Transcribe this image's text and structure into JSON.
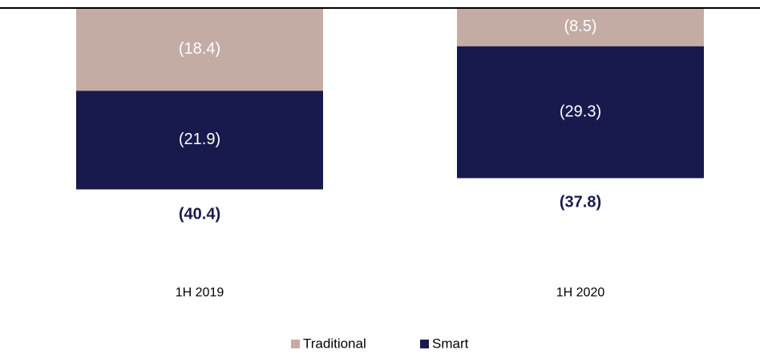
{
  "chart_data": {
    "type": "stacked-bar",
    "categories": [
      "1H 2019",
      "1H 2020"
    ],
    "series": [
      {
        "name": "Traditional",
        "color": "#c4aca5",
        "values": [
          -18.4,
          -8.5
        ],
        "value_labels": [
          "(18.4)",
          "(8.5)"
        ]
      },
      {
        "name": "Smart",
        "color": "#181a4e",
        "values": [
          -21.9,
          -29.3
        ],
        "value_labels": [
          "(21.9)",
          "(29.3)"
        ]
      }
    ],
    "totals": [
      -40.4,
      -37.8
    ],
    "total_labels": [
      "(40.4)",
      "(37.8)"
    ],
    "legend": "bottom"
  }
}
